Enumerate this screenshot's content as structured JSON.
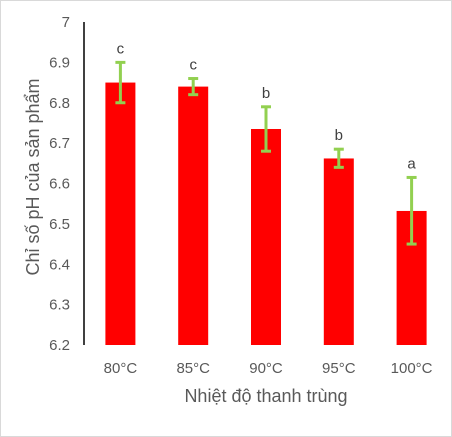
{
  "chart_data": {
    "type": "bar",
    "categories": [
      "80°C",
      "85°C",
      "90°C",
      "95°C",
      "100°C"
    ],
    "values": [
      6.85,
      6.84,
      6.735,
      6.662,
      6.532
    ],
    "error_low": [
      6.8,
      6.82,
      6.68,
      6.64,
      6.45
    ],
    "error_high": [
      6.9,
      6.86,
      6.79,
      6.685,
      6.615
    ],
    "significance_labels": [
      "c",
      "c",
      "b",
      "b",
      "a"
    ],
    "title": "",
    "xlabel": "Nhiệt độ thanh trùng",
    "ylabel": "Chỉ số pH của sản phẩm",
    "ylim": [
      6.2,
      7
    ],
    "yticks": [
      "6.2",
      "6.3",
      "6.4",
      "6.5",
      "6.6",
      "6.7",
      "6.8",
      "6.9",
      "7"
    ],
    "grid": false,
    "legend": "none",
    "colors": {
      "bar": "#ff0000",
      "error_bar": "#92d050",
      "axis": "#000000"
    }
  }
}
